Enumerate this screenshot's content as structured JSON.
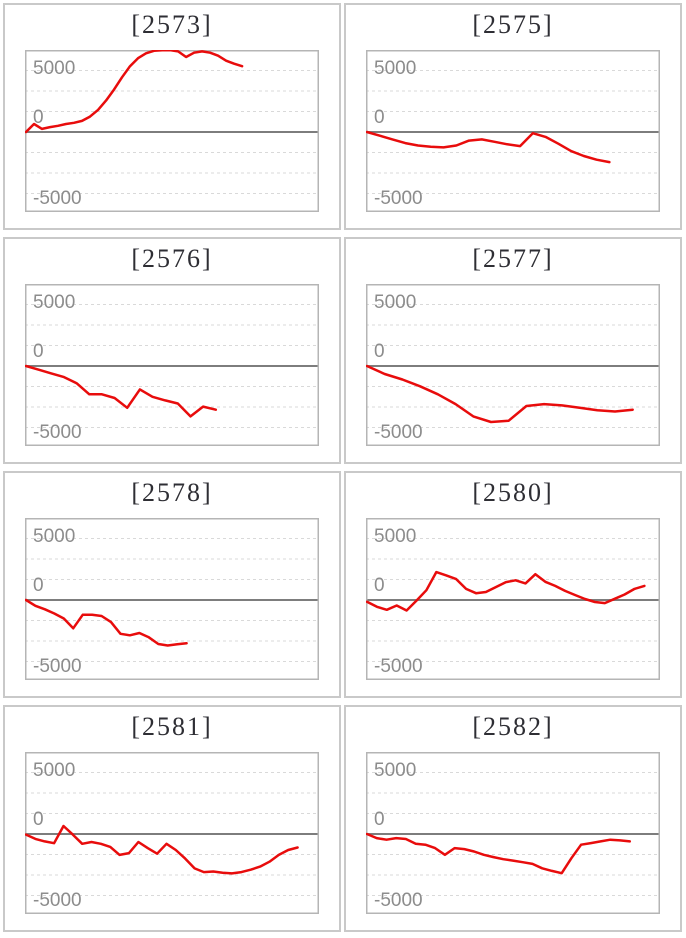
{
  "axis": {
    "tick_labels": [
      "5000",
      "0",
      "-5000"
    ],
    "tick_values": [
      5000,
      0,
      -5000
    ],
    "ylim": [
      -6500,
      6700
    ],
    "gridlines": "on",
    "gridline_style": "dashed",
    "zero_baseline": "solid",
    "x_tick_labels": "none"
  },
  "style": {
    "series_color": "#e80c0c",
    "zero_line_color": "#7d7d7d",
    "grid_line_color": "#d9d9d9",
    "plot_border_color": "#b5b5b5",
    "card_border_color": "#c9c9c9",
    "title_color": "#2e2e34",
    "tick_label_color": "#8c8c8c",
    "background": "#ffffff"
  },
  "chart_data": [
    {
      "machine": "2573",
      "title": "[2573]",
      "type": "line",
      "span": 0.74,
      "values": [
        0,
        650,
        250,
        400,
        500,
        650,
        750,
        900,
        1250,
        1800,
        2550,
        3450,
        4450,
        5350,
        6000,
        6400,
        6600,
        6650,
        6650,
        6550,
        6100,
        6450,
        6550,
        6450,
        6200,
        5800,
        5550,
        5350
      ]
    },
    {
      "machine": "2575",
      "title": "[2575]",
      "type": "line",
      "span": 0.83,
      "values": [
        0,
        -300,
        -600,
        -900,
        -1100,
        -1200,
        -1250,
        -1100,
        -700,
        -600,
        -800,
        -1000,
        -1150,
        -100,
        -400,
        -950,
        -1550,
        -1950,
        -2250,
        -2450
      ]
    },
    {
      "machine": "2576",
      "title": "[2576]",
      "type": "line",
      "span": 0.65,
      "values": [
        0,
        -300,
        -600,
        -900,
        -1400,
        -2300,
        -2300,
        -2600,
        -3400,
        -1900,
        -2500,
        -2800,
        -3050,
        -4100,
        -3300,
        -3550
      ]
    },
    {
      "machine": "2577",
      "title": "[2577]",
      "type": "line",
      "span": 0.91,
      "values": [
        0,
        -650,
        -1100,
        -1650,
        -2300,
        -3100,
        -4100,
        -4550,
        -4450,
        -3250,
        -3100,
        -3200,
        -3400,
        -3600,
        -3700,
        -3550
      ]
    },
    {
      "machine": "2578",
      "title": "[2578]",
      "type": "line",
      "span": 0.55,
      "values": [
        0,
        -470,
        -760,
        -1100,
        -1500,
        -2300,
        -1200,
        -1200,
        -1300,
        -1800,
        -2750,
        -2870,
        -2680,
        -3030,
        -3580,
        -3700,
        -3600,
        -3520
      ]
    },
    {
      "machine": "2580",
      "title": "[2580]",
      "type": "line",
      "span": 0.95,
      "values": [
        -150,
        -550,
        -800,
        -450,
        -850,
        -50,
        800,
        2270,
        2000,
        1700,
        900,
        550,
        650,
        1050,
        1450,
        1600,
        1350,
        2100,
        1480,
        1150,
        740,
        410,
        80,
        -160,
        -250,
        100,
        450,
        900,
        1150
      ]
    },
    {
      "machine": "2581",
      "title": "[2581]",
      "type": "line",
      "span": 0.93,
      "values": [
        -50,
        -400,
        -600,
        -750,
        650,
        -50,
        -800,
        -650,
        -800,
        -1050,
        -1700,
        -1550,
        -650,
        -1150,
        -1600,
        -800,
        -1300,
        -2000,
        -2800,
        -3100,
        -3050,
        -3150,
        -3200,
        -3100,
        -2900,
        -2650,
        -2250,
        -1700,
        -1300,
        -1100
      ]
    },
    {
      "machine": "2582",
      "title": "[2582]",
      "type": "line",
      "span": 0.9,
      "values": [
        0,
        -330,
        -460,
        -330,
        -410,
        -790,
        -870,
        -1150,
        -1690,
        -1150,
        -1230,
        -1420,
        -1690,
        -1880,
        -2050,
        -2160,
        -2290,
        -2430,
        -2790,
        -3000,
        -3190,
        -1970,
        -870,
        -740,
        -600,
        -460,
        -520,
        -600
      ]
    }
  ]
}
